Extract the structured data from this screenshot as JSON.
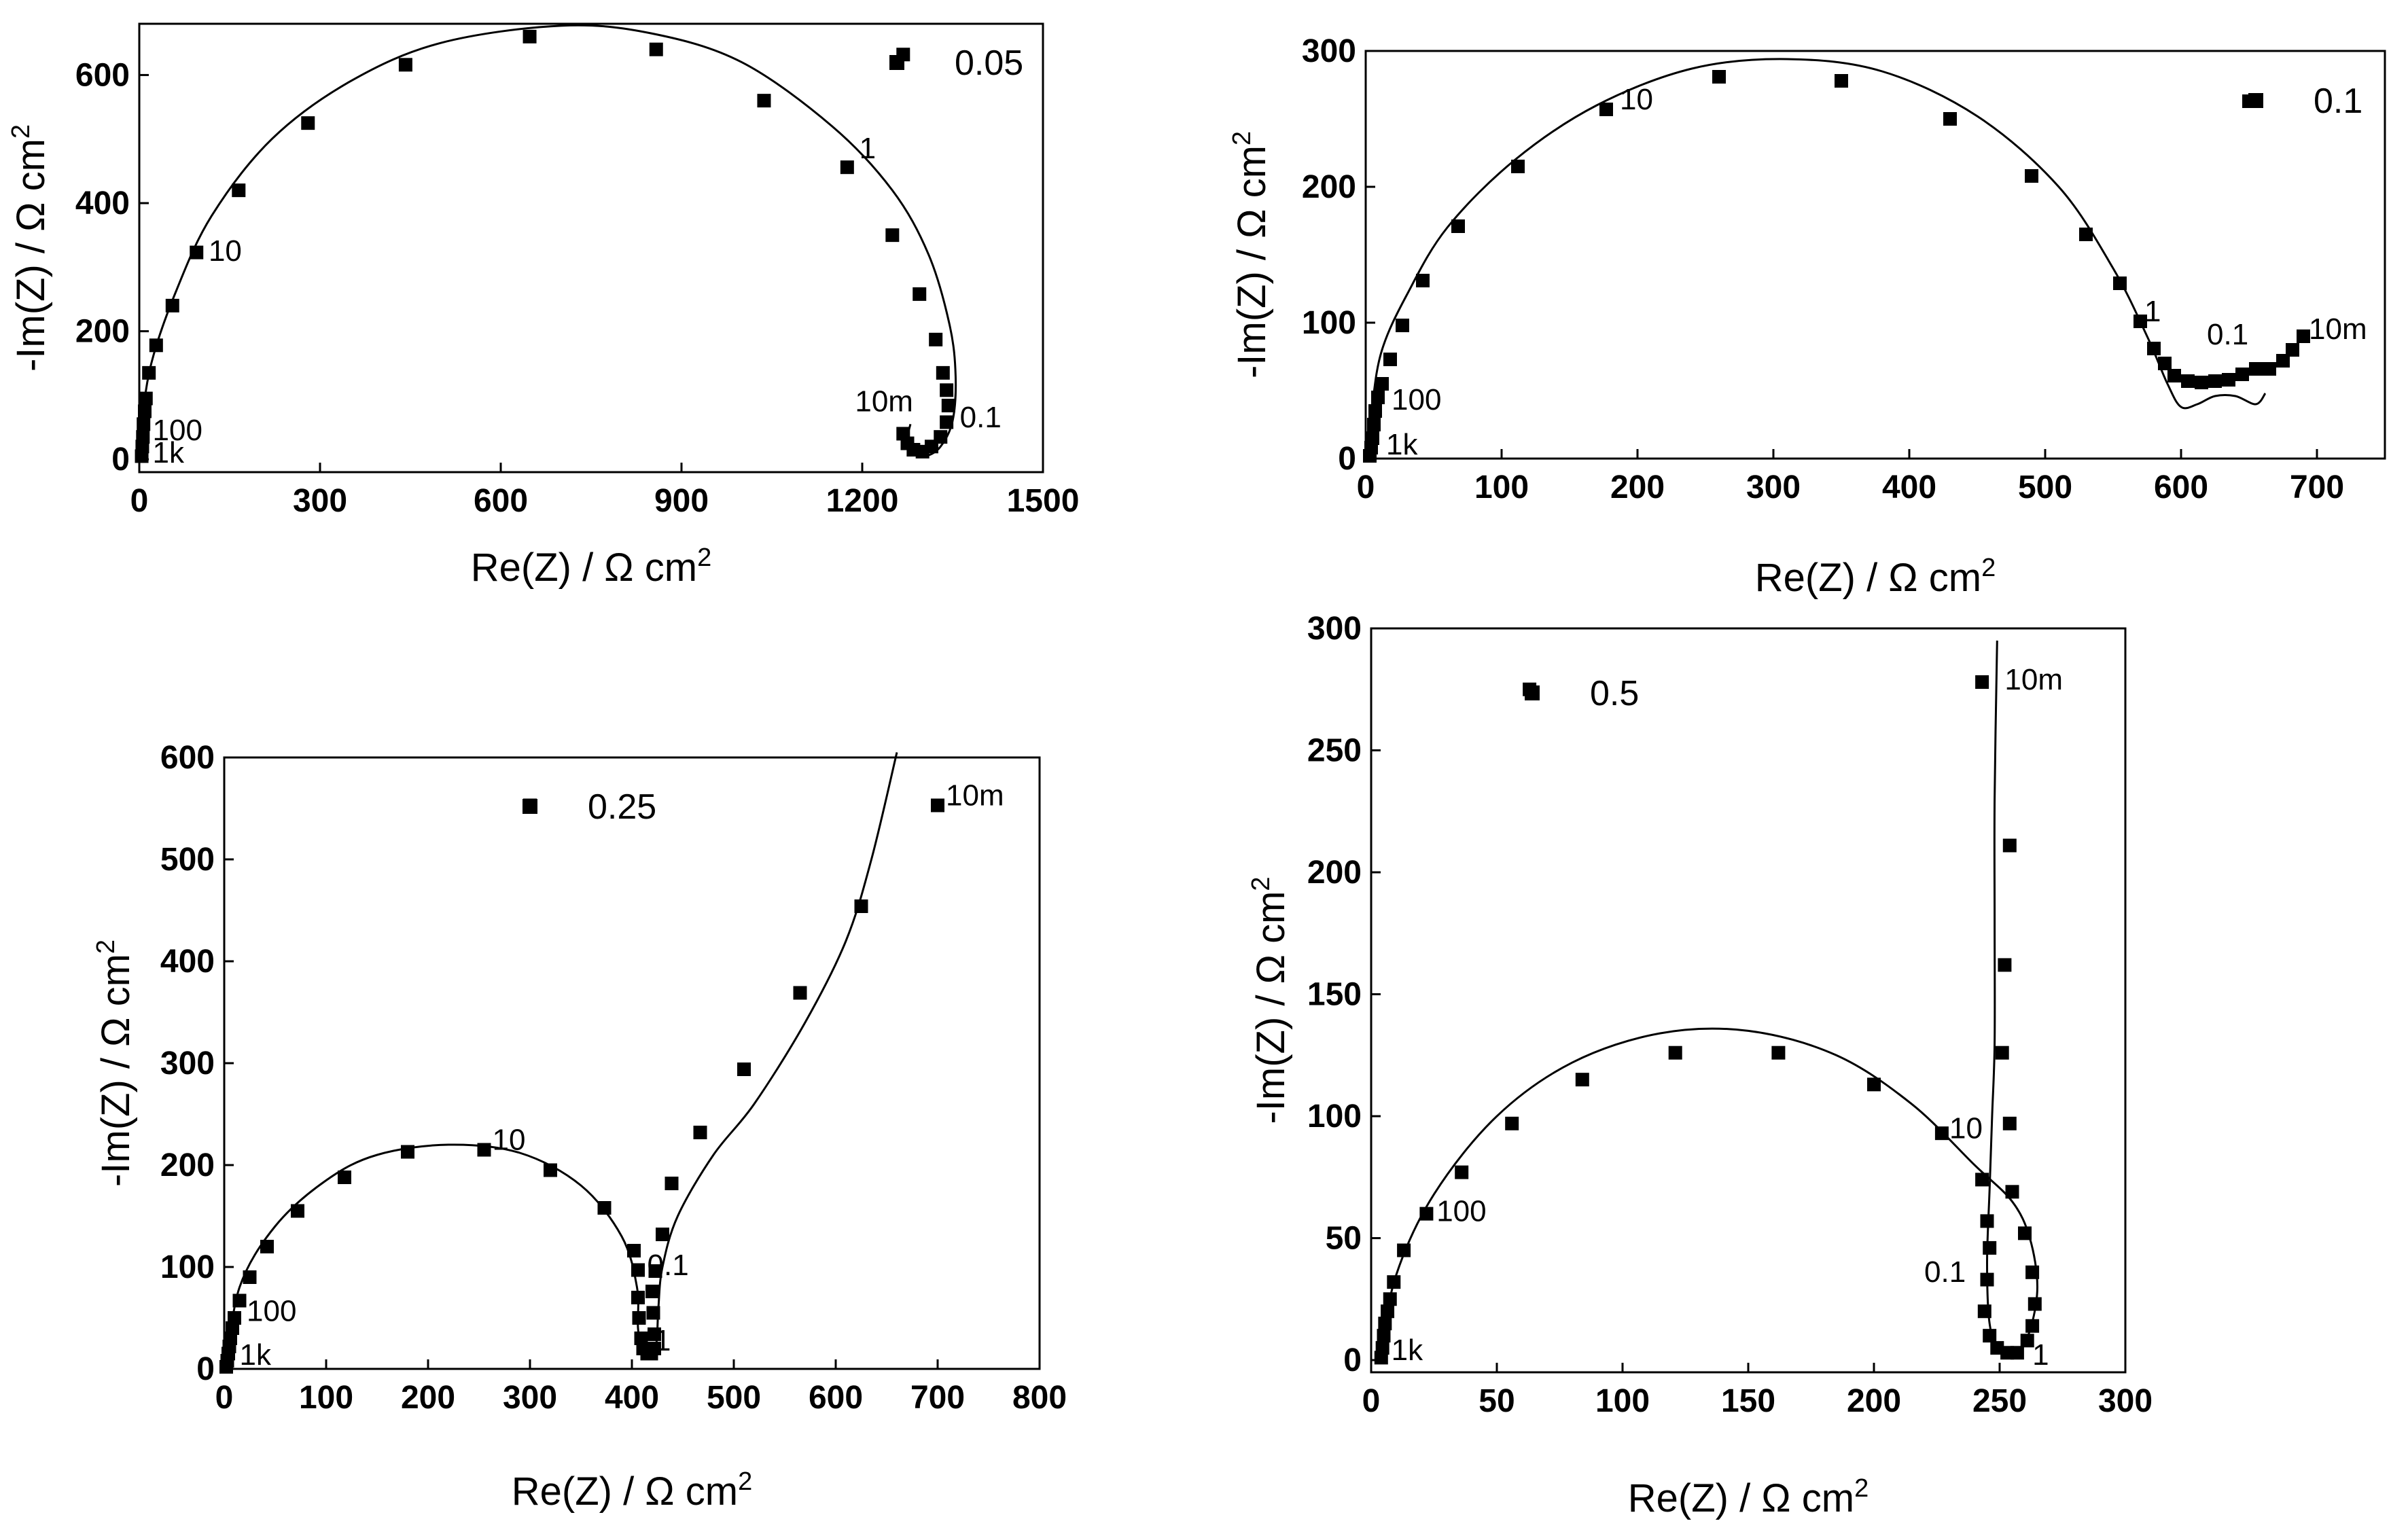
{
  "chart_data": [
    {
      "type": "scatter",
      "legend": "0.05",
      "xlabel": "Re(Z) / Ω cm",
      "ylabel": "-Im(Z) / Ω cm",
      "unit_exponent": "2",
      "xlim": [
        0,
        1500
      ],
      "ylim": [
        -20,
        680
      ],
      "xticks": [
        0,
        300,
        600,
        900,
        1200,
        1500
      ],
      "yticks": [
        0,
        200,
        400,
        600
      ],
      "points": [
        [
          4,
          5
        ],
        [
          5,
          20
        ],
        [
          6,
          35
        ],
        [
          7,
          55
        ],
        [
          9,
          75
        ],
        [
          11,
          95
        ],
        [
          16,
          135
        ],
        [
          28,
          178
        ],
        [
          55,
          240
        ],
        [
          95,
          323
        ],
        [
          165,
          420
        ],
        [
          280,
          525
        ],
        [
          442,
          616
        ],
        [
          648,
          660
        ],
        [
          858,
          640
        ],
        [
          1037,
          560
        ],
        [
          1175,
          456
        ],
        [
          1250,
          350
        ],
        [
          1295,
          258
        ],
        [
          1322,
          187
        ],
        [
          1334,
          135
        ],
        [
          1340,
          108
        ],
        [
          1343,
          84
        ],
        [
          1340,
          58
        ],
        [
          1330,
          35
        ],
        [
          1315,
          20
        ],
        [
          1300,
          12
        ],
        [
          1285,
          15
        ],
        [
          1275,
          25
        ],
        [
          1268,
          40
        ],
        [
          1268,
          632
        ]
      ],
      "fit": [
        [
          2,
          0
        ],
        [
          5,
          60
        ],
        [
          20,
          150
        ],
        [
          60,
          260
        ],
        [
          120,
          380
        ],
        [
          220,
          500
        ],
        [
          350,
          590
        ],
        [
          500,
          650
        ],
        [
          700,
          677
        ],
        [
          850,
          665
        ],
        [
          1000,
          620
        ],
        [
          1150,
          520
        ],
        [
          1250,
          420
        ],
        [
          1310,
          320
        ],
        [
          1345,
          210
        ],
        [
          1355,
          130
        ],
        [
          1350,
          60
        ],
        [
          1330,
          20
        ],
        [
          1305,
          5
        ],
        [
          1285,
          10
        ],
        [
          1275,
          30
        ],
        [
          1280,
          55
        ]
      ],
      "freq_labels": [
        {
          "text": "1",
          "x": 1195,
          "y": 470
        },
        {
          "text": "10",
          "x": 115,
          "y": 310
        },
        {
          "text": "100",
          "x": 22,
          "y": 30
        },
        {
          "text": "1k",
          "x": 22,
          "y": -5
        },
        {
          "text": "10m",
          "x": 1188,
          "y": 75
        },
        {
          "text": "0.1",
          "x": 1362,
          "y": 50
        }
      ]
    },
    {
      "type": "scatter",
      "legend": "0.1",
      "xlabel": "Re(Z) / Ω cm",
      "ylabel": "-Im(Z) / Ω cm",
      "unit_exponent": "2",
      "xlim": [
        0,
        750
      ],
      "ylim": [
        0,
        300
      ],
      "xticks": [
        0,
        100,
        200,
        300,
        400,
        500,
        600,
        700
      ],
      "yticks": [
        0,
        100,
        200,
        300
      ],
      "points": [
        [
          3,
          2
        ],
        [
          4,
          8
        ],
        [
          5,
          15
        ],
        [
          6,
          25
        ],
        [
          7,
          35
        ],
        [
          9,
          45
        ],
        [
          12,
          55
        ],
        [
          18,
          73
        ],
        [
          27,
          98
        ],
        [
          42,
          131
        ],
        [
          68,
          171
        ],
        [
          112,
          215
        ],
        [
          177,
          257
        ],
        [
          260,
          281
        ],
        [
          350,
          278
        ],
        [
          430,
          250
        ],
        [
          490,
          208
        ],
        [
          530,
          165
        ],
        [
          555,
          129
        ],
        [
          570,
          101
        ],
        [
          580,
          81
        ],
        [
          588,
          70
        ],
        [
          595,
          61
        ],
        [
          605,
          57
        ],
        [
          615,
          56
        ],
        [
          625,
          57
        ],
        [
          635,
          58
        ],
        [
          645,
          62
        ],
        [
          655,
          66
        ],
        [
          665,
          66
        ],
        [
          675,
          72
        ],
        [
          682,
          80
        ],
        [
          690,
          90
        ],
        [
          650,
          263
        ]
      ],
      "fit": [
        [
          2,
          0
        ],
        [
          5,
          40
        ],
        [
          12,
          80
        ],
        [
          30,
          120
        ],
        [
          60,
          170
        ],
        [
          110,
          220
        ],
        [
          170,
          260
        ],
        [
          240,
          287
        ],
        [
          310,
          294
        ],
        [
          380,
          285
        ],
        [
          450,
          252
        ],
        [
          510,
          200
        ],
        [
          550,
          140
        ],
        [
          575,
          90
        ],
        [
          590,
          55
        ],
        [
          600,
          38
        ],
        [
          612,
          40
        ],
        [
          625,
          46
        ],
        [
          640,
          46
        ],
        [
          655,
          40
        ],
        [
          662,
          48
        ]
      ],
      "freq_labels": [
        {
          "text": "10",
          "x": 187,
          "y": 257
        },
        {
          "text": "100",
          "x": 19,
          "y": 36
        },
        {
          "text": "1k",
          "x": 15,
          "y": 3
        },
        {
          "text": "1",
          "x": 573,
          "y": 101
        },
        {
          "text": "0.1",
          "x": 619,
          "y": 84
        },
        {
          "text": "10m",
          "x": 694,
          "y": 88
        }
      ]
    },
    {
      "type": "scatter",
      "legend": "0.25",
      "xlabel": "Re(Z) / Ω cm",
      "ylabel": "-Im(Z) / Ω cm",
      "unit_exponent": "2",
      "xlim": [
        0,
        800
      ],
      "ylim": [
        0,
        600
      ],
      "xticks": [
        0,
        100,
        200,
        300,
        400,
        500,
        600,
        700,
        800
      ],
      "yticks": [
        0,
        100,
        200,
        300,
        400,
        500,
        600
      ],
      "points": [
        [
          2,
          2
        ],
        [
          3,
          8
        ],
        [
          4,
          15
        ],
        [
          5,
          22
        ],
        [
          6,
          30
        ],
        [
          8,
          40
        ],
        [
          10,
          50
        ],
        [
          15,
          67
        ],
        [
          25,
          90
        ],
        [
          42,
          120
        ],
        [
          72,
          155
        ],
        [
          118,
          188
        ],
        [
          180,
          213
        ],
        [
          255,
          215
        ],
        [
          320,
          195
        ],
        [
          373,
          158
        ],
        [
          402,
          116
        ],
        [
          406,
          97
        ],
        [
          406,
          70
        ],
        [
          407,
          50
        ],
        [
          409,
          30
        ],
        [
          411,
          20
        ],
        [
          415,
          15
        ],
        [
          419,
          15
        ],
        [
          422,
          20
        ],
        [
          422,
          34
        ],
        [
          421,
          55
        ],
        [
          420,
          76
        ],
        [
          423,
          96
        ],
        [
          430,
          132
        ],
        [
          439,
          182
        ],
        [
          467,
          232
        ],
        [
          510,
          294
        ],
        [
          565,
          369
        ],
        [
          625,
          454
        ],
        [
          700,
          553
        ],
        [
          300,
          553
        ]
      ],
      "fit": [
        [
          2,
          0
        ],
        [
          15,
          80
        ],
        [
          50,
          140
        ],
        [
          100,
          185
        ],
        [
          150,
          210
        ],
        [
          220,
          220
        ],
        [
          290,
          212
        ],
        [
          350,
          180
        ],
        [
          390,
          130
        ],
        [
          405,
          80
        ],
        [
          406,
          40
        ],
        [
          410,
          15
        ],
        [
          418,
          10
        ],
        [
          424,
          25
        ],
        [
          426,
          60
        ],
        [
          430,
          100
        ],
        [
          445,
          150
        ],
        [
          480,
          210
        ],
        [
          520,
          260
        ],
        [
          570,
          340
        ],
        [
          610,
          420
        ],
        [
          635,
          500
        ],
        [
          660,
          605
        ]
      ],
      "freq_labels": [
        {
          "text": "10",
          "x": 263,
          "y": 215
        },
        {
          "text": "100",
          "x": 22,
          "y": 47
        },
        {
          "text": "1k",
          "x": 15,
          "y": 4
        },
        {
          "text": "0.1",
          "x": 415,
          "y": 92
        },
        {
          "text": "1",
          "x": 422,
          "y": 18
        },
        {
          "text": "10m",
          "x": 708,
          "y": 553
        }
      ]
    },
    {
      "type": "scatter",
      "legend": "0.5",
      "xlabel": "Re(Z) / Ω cm",
      "ylabel": "-Im(Z) / Ω cm",
      "unit_exponent": "2",
      "xlim": [
        0,
        300
      ],
      "ylim": [
        -5,
        300
      ],
      "xticks": [
        0,
        50,
        100,
        150,
        200,
        250,
        300
      ],
      "yticks": [
        0,
        50,
        100,
        150,
        200,
        250,
        300
      ],
      "points": [
        [
          4,
          1
        ],
        [
          4.5,
          5
        ],
        [
          5,
          10
        ],
        [
          5.5,
          15
        ],
        [
          6.5,
          20
        ],
        [
          7.5,
          25
        ],
        [
          9,
          32
        ],
        [
          13,
          45
        ],
        [
          22,
          60
        ],
        [
          36,
          77
        ],
        [
          56,
          97
        ],
        [
          84,
          115
        ],
        [
          121,
          126
        ],
        [
          162,
          126
        ],
        [
          200,
          113
        ],
        [
          227,
          93
        ],
        [
          243,
          74
        ],
        [
          245,
          57
        ],
        [
          246,
          46
        ],
        [
          245,
          33
        ],
        [
          244,
          20
        ],
        [
          246,
          10
        ],
        [
          249,
          5
        ],
        [
          253,
          3
        ],
        [
          257,
          3
        ],
        [
          261,
          8
        ],
        [
          263,
          14
        ],
        [
          264,
          23
        ],
        [
          263,
          36
        ],
        [
          260,
          52
        ],
        [
          255,
          69
        ],
        [
          254,
          97
        ],
        [
          251,
          126
        ],
        [
          252,
          162
        ],
        [
          254,
          211
        ],
        [
          243,
          278
        ],
        [
          63,
          275
        ]
      ],
      "fit": [
        [
          3,
          0
        ],
        [
          10,
          35
        ],
        [
          25,
          68
        ],
        [
          50,
          100
        ],
        [
          80,
          122
        ],
        [
          115,
          134
        ],
        [
          150,
          135
        ],
        [
          185,
          125
        ],
        [
          215,
          105
        ],
        [
          240,
          80
        ],
        [
          255,
          65
        ],
        [
          262,
          50
        ],
        [
          265,
          30
        ],
        [
          262,
          12
        ],
        [
          257,
          4
        ],
        [
          250,
          3
        ],
        [
          246,
          15
        ],
        [
          245,
          40
        ],
        [
          246,
          70
        ],
        [
          247,
          100
        ],
        [
          248,
          130
        ],
        [
          248,
          180
        ],
        [
          248,
          230
        ],
        [
          249,
          295
        ]
      ],
      "freq_labels": [
        {
          "text": "10",
          "x": 230,
          "y": 91
        },
        {
          "text": "100",
          "x": 26,
          "y": 57
        },
        {
          "text": "1k",
          "x": 8,
          "y": 0
        },
        {
          "text": "0.1",
          "x": 220,
          "y": 32
        },
        {
          "text": "1",
          "x": 263,
          "y": -2
        },
        {
          "text": "10m",
          "x": 252,
          "y": 275
        }
      ]
    }
  ]
}
